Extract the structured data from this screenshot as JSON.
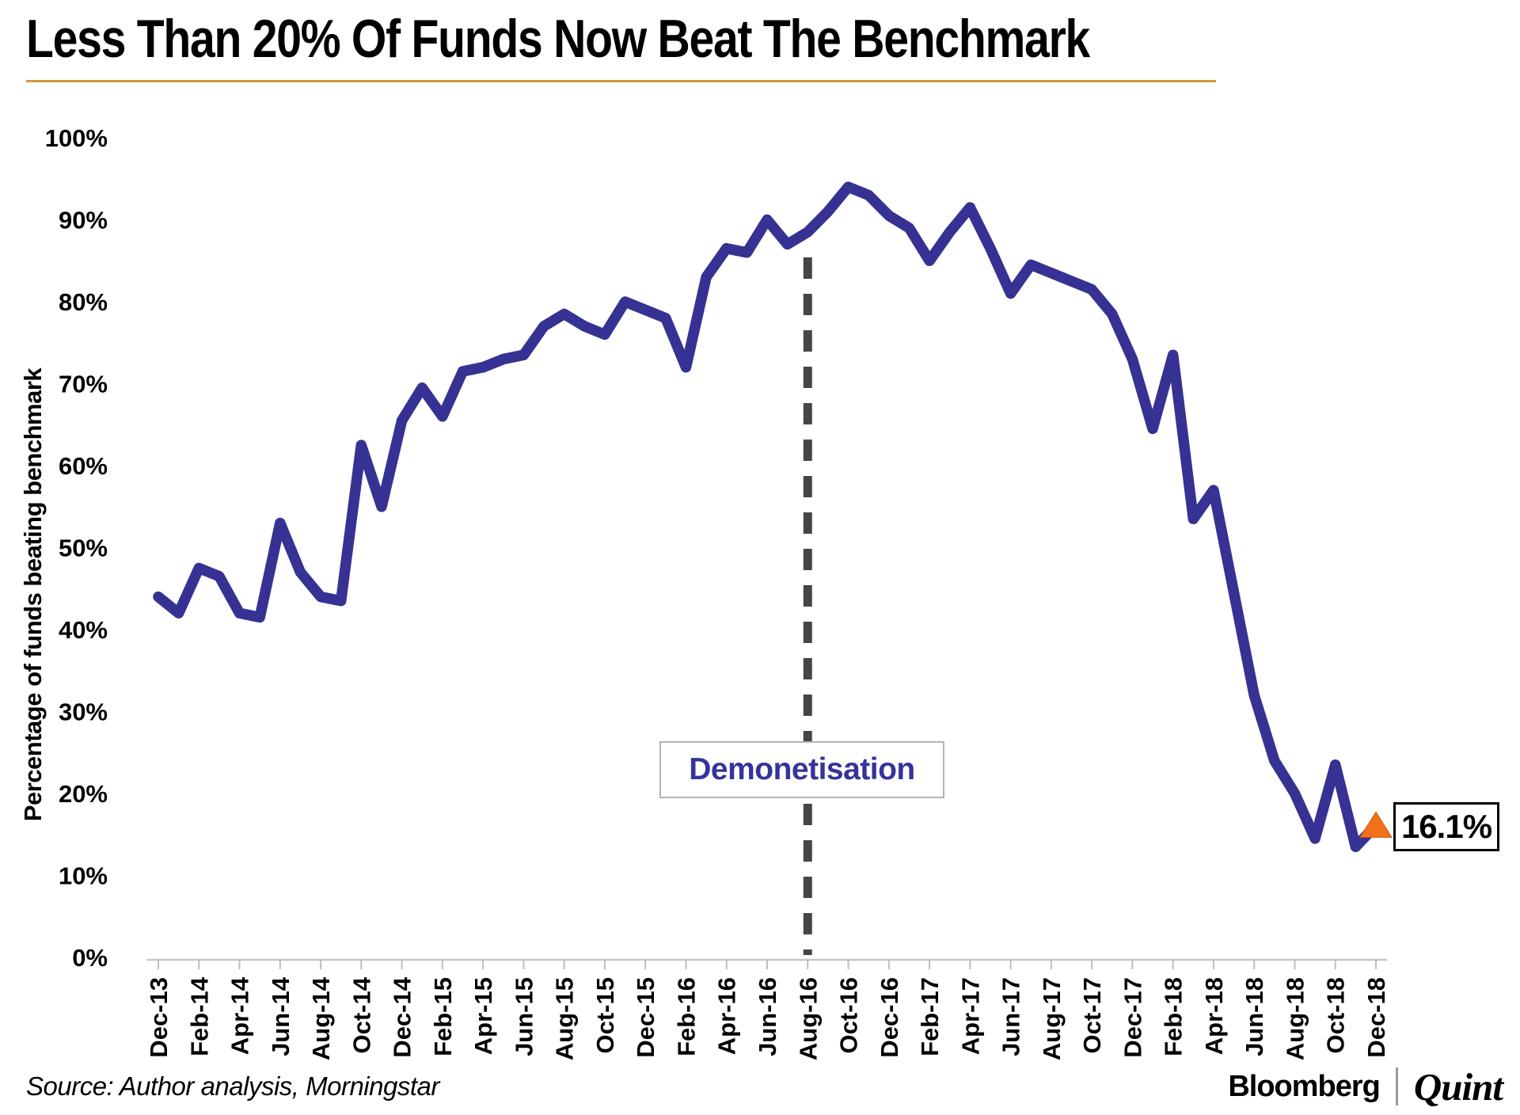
{
  "title": "Less Than 20% Of Funds Now Beat The Benchmark",
  "source": "Source: Author analysis, Morningstar",
  "brand": {
    "bloomberg": "Bloomberg",
    "quint": "Quint"
  },
  "annotations": {
    "demonetisation_label": "Demonetisation",
    "end_value_label": "16.1%"
  },
  "colors": {
    "line": "#363293",
    "dashed_line": "#464646",
    "marker": "#F4711C",
    "annotation_text": "#34349B",
    "title_rule": "#D0983C",
    "axis": "#c6c6c6",
    "tick": "#bdbdbd",
    "text": "#000000"
  },
  "chart_data": {
    "type": "line",
    "title": "Less Than 20% Of Funds Now Beat The Benchmark",
    "xlabel": "",
    "ylabel": "Percentage of funds beating benchmark",
    "ylim": [
      0,
      100
    ],
    "grid": false,
    "legend": "none",
    "y_ticks": [
      "0%",
      "10%",
      "20%",
      "30%",
      "40%",
      "50%",
      "60%",
      "70%",
      "80%",
      "90%",
      "100%"
    ],
    "x_tick_labels": [
      "Dec-13",
      "Feb-14",
      "Apr-14",
      "Jun-14",
      "Aug-14",
      "Oct-14",
      "Dec-14",
      "Feb-15",
      "Apr-15",
      "Jun-15",
      "Aug-15",
      "Oct-15",
      "Dec-15",
      "Feb-16",
      "Apr-16",
      "Jun-16",
      "Aug-16",
      "Oct-16",
      "Dec-16",
      "Feb-17",
      "Apr-17",
      "Jun-17",
      "Aug-17",
      "Oct-17",
      "Dec-17",
      "Feb-18",
      "Apr-18",
      "Jun-18",
      "Aug-18",
      "Oct-18",
      "Dec-18"
    ],
    "x": [
      "Dec-13",
      "Jan-14",
      "Feb-14",
      "Mar-14",
      "Apr-14",
      "May-14",
      "Jun-14",
      "Jul-14",
      "Aug-14",
      "Sep-14",
      "Oct-14",
      "Nov-14",
      "Dec-14",
      "Jan-15",
      "Feb-15",
      "Mar-15",
      "Apr-15",
      "May-15",
      "Jun-15",
      "Jul-15",
      "Aug-15",
      "Sep-15",
      "Oct-15",
      "Nov-15",
      "Dec-15",
      "Jan-16",
      "Feb-16",
      "Mar-16",
      "Apr-16",
      "May-16",
      "Jun-16",
      "Jul-16",
      "Aug-16",
      "Sep-16",
      "Oct-16",
      "Nov-16",
      "Dec-16",
      "Jan-17",
      "Feb-17",
      "Mar-17",
      "Apr-17",
      "May-17",
      "Jun-17",
      "Jul-17",
      "Aug-17",
      "Sep-17",
      "Oct-17",
      "Nov-17",
      "Dec-17",
      "Jan-18",
      "Feb-18",
      "Mar-18",
      "Apr-18",
      "May-18",
      "Jun-18",
      "Jul-18",
      "Aug-18",
      "Sep-18",
      "Oct-18",
      "Nov-18",
      "Dec-18"
    ],
    "series": [
      {
        "name": "Percentage of funds beating benchmark",
        "values": [
          44,
          42,
          47.5,
          46.5,
          42,
          41.5,
          53,
          47,
          44,
          43.5,
          62.5,
          55,
          65.5,
          69.5,
          66,
          71.5,
          72,
          73,
          73.5,
          77,
          78.5,
          77,
          76,
          80,
          79,
          78,
          72,
          83,
          86.5,
          86,
          90,
          87,
          88.5,
          91,
          94,
          93,
          90.5,
          89,
          85,
          88.5,
          91.5,
          86.5,
          81,
          84.5,
          83.5,
          82.5,
          81.5,
          78.5,
          73,
          64.5,
          73.5,
          53.5,
          57,
          44.5,
          32,
          24,
          20,
          14.5,
          23.5,
          13.5,
          16.1
        ]
      }
    ],
    "event_line": {
      "x": "Aug-16",
      "label": "Demonetisation"
    },
    "end_point": {
      "x": "Dec-18",
      "value": 16.1,
      "label": "16.1%",
      "marker": "orange-triangle"
    }
  }
}
